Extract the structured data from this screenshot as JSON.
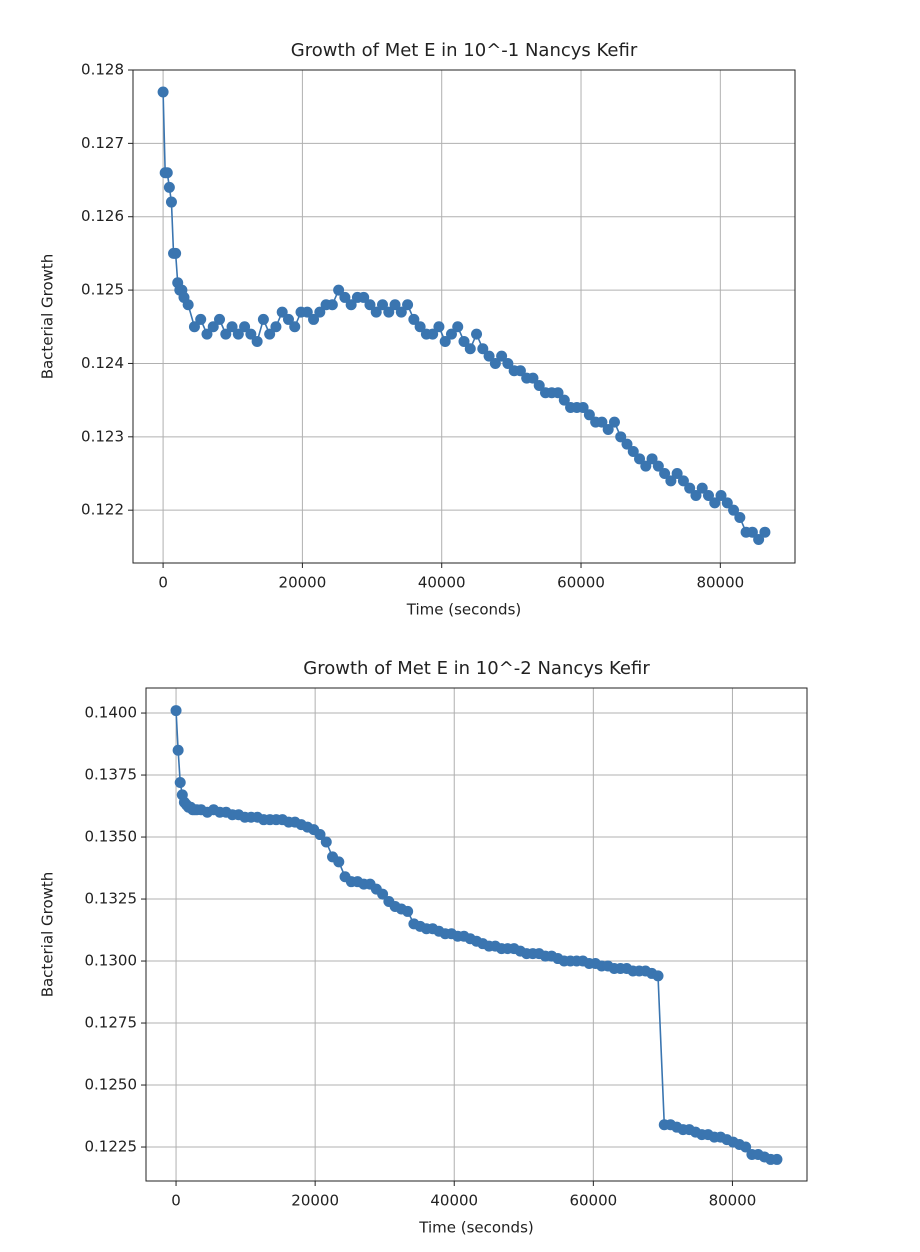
{
  "chart_data": [
    {
      "type": "line",
      "title": "Growth of Met E in 10^-1 Nancys Kefir",
      "xlabel": "Time (seconds)",
      "ylabel": "Bacterial Growth",
      "color": "#3a75b0",
      "grid": true,
      "marker": true,
      "x": [
        0,
        300,
        600,
        900,
        1200,
        1500,
        1800,
        2100,
        2400,
        2700,
        3000,
        3600,
        4500,
        5400,
        6300,
        7200,
        8100,
        9000,
        9900,
        10800,
        11700,
        12600,
        13500,
        14400,
        15300,
        16200,
        17100,
        18000,
        18900,
        19800,
        20700,
        21600,
        22500,
        23400,
        24300,
        25200,
        26100,
        27000,
        27900,
        28800,
        29700,
        30600,
        31500,
        32400,
        33300,
        34200,
        35100,
        36000,
        36900,
        37800,
        38700,
        39600,
        40500,
        41400,
        42300,
        43200,
        44100,
        45000,
        45900,
        46800,
        47700,
        48600,
        49500,
        50400,
        51300,
        52200,
        53100,
        54000,
        54900,
        55800,
        56700,
        57600,
        58500,
        59400,
        60300,
        61200,
        62100,
        63000,
        63900,
        64800,
        65700,
        66600,
        67500,
        68400,
        69300,
        70200,
        71100,
        72000,
        72900,
        73800,
        74700,
        75600,
        76500,
        77400,
        78300,
        79200,
        80100,
        81000,
        81900,
        82800,
        83700,
        84600,
        85500,
        86400
      ],
      "values": [
        0.1277,
        0.1266,
        0.1266,
        0.1264,
        0.1262,
        0.1255,
        0.1255,
        0.1251,
        0.125,
        0.125,
        0.1249,
        0.1248,
        0.1245,
        0.1246,
        0.1244,
        0.1245,
        0.1246,
        0.1244,
        0.1245,
        0.1244,
        0.1245,
        0.1244,
        0.1243,
        0.1246,
        0.1244,
        0.1245,
        0.1247,
        0.1246,
        0.1245,
        0.1247,
        0.1247,
        0.1246,
        0.1247,
        0.1248,
        0.1248,
        0.125,
        0.1249,
        0.1248,
        0.1249,
        0.1249,
        0.1248,
        0.1247,
        0.1248,
        0.1247,
        0.1248,
        0.1247,
        0.1248,
        0.1246,
        0.1245,
        0.1244,
        0.1244,
        0.1245,
        0.1243,
        0.1244,
        0.1245,
        0.1243,
        0.1242,
        0.1244,
        0.1242,
        0.1241,
        0.124,
        0.1241,
        0.124,
        0.1239,
        0.1239,
        0.1238,
        0.1238,
        0.1237,
        0.1236,
        0.1236,
        0.1236,
        0.1235,
        0.1234,
        0.1234,
        0.1234,
        0.1233,
        0.1232,
        0.1232,
        0.1231,
        0.1232,
        0.123,
        0.1229,
        0.1228,
        0.1227,
        0.1226,
        0.1227,
        0.1226,
        0.1225,
        0.1224,
        0.1225,
        0.1224,
        0.1223,
        0.1222,
        0.1223,
        0.1222,
        0.1221,
        0.1222,
        0.1221,
        0.122,
        0.1219,
        0.1217,
        0.1217,
        0.1216,
        0.1217
      ],
      "xlim": [
        -4320,
        90720
      ],
      "xticks": [
        0,
        20000,
        40000,
        60000,
        80000
      ],
      "ylim": [
        0.12128,
        0.128
      ],
      "yticks": [
        0.122,
        0.123,
        0.124,
        0.125,
        0.126,
        0.127,
        0.128
      ]
    },
    {
      "type": "line",
      "title": "Growth of Met E in 10^-2 Nancys Kefir",
      "xlabel": "Time (seconds)",
      "ylabel": "Bacterial Growth",
      "color": "#3a75b0",
      "grid": true,
      "marker": true,
      "x": [
        0,
        300,
        600,
        900,
        1200,
        1500,
        1800,
        2100,
        2400,
        2700,
        3000,
        3600,
        4500,
        5400,
        6300,
        7200,
        8100,
        9000,
        9900,
        10800,
        11700,
        12600,
        13500,
        14400,
        15300,
        16200,
        17100,
        18000,
        18900,
        19800,
        20700,
        21600,
        22500,
        23400,
        24300,
        25200,
        26100,
        27000,
        27900,
        28800,
        29700,
        30600,
        31500,
        32400,
        33300,
        34200,
        35100,
        36000,
        36900,
        37800,
        38700,
        39600,
        40500,
        41400,
        42300,
        43200,
        44100,
        45000,
        45900,
        46800,
        47700,
        48600,
        49500,
        50400,
        51300,
        52200,
        53100,
        54000,
        54900,
        55800,
        56700,
        57600,
        58500,
        59400,
        60300,
        61200,
        62100,
        63000,
        63900,
        64800,
        65700,
        66600,
        67500,
        68400,
        69300,
        70200,
        71100,
        72000,
        72900,
        73800,
        74700,
        75600,
        76500,
        77400,
        78300,
        79200,
        80100,
        81000,
        81900,
        82800,
        83700,
        84600,
        85500,
        86400
      ],
      "values": [
        0.1401,
        0.1385,
        0.1372,
        0.1367,
        0.1364,
        0.1363,
        0.1362,
        0.1362,
        0.1361,
        0.1361,
        0.1361,
        0.1361,
        0.136,
        0.1361,
        0.136,
        0.136,
        0.1359,
        0.1359,
        0.1358,
        0.1358,
        0.1358,
        0.1357,
        0.1357,
        0.1357,
        0.1357,
        0.1356,
        0.1356,
        0.1355,
        0.1354,
        0.1353,
        0.1351,
        0.1348,
        0.1342,
        0.134,
        0.1334,
        0.1332,
        0.1332,
        0.1331,
        0.1331,
        0.1329,
        0.1327,
        0.1324,
        0.1322,
        0.1321,
        0.132,
        0.1315,
        0.1314,
        0.1313,
        0.1313,
        0.1312,
        0.1311,
        0.1311,
        0.131,
        0.131,
        0.1309,
        0.1308,
        0.1307,
        0.1306,
        0.1306,
        0.1305,
        0.1305,
        0.1305,
        0.1304,
        0.1303,
        0.1303,
        0.1303,
        0.1302,
        0.1302,
        0.1301,
        0.13,
        0.13,
        0.13,
        0.13,
        0.1299,
        0.1299,
        0.1298,
        0.1298,
        0.1297,
        0.1297,
        0.1297,
        0.1296,
        0.1296,
        0.1296,
        0.1295,
        0.1294,
        0.1234,
        0.1234,
        0.1233,
        0.1232,
        0.1232,
        0.1231,
        0.123,
        0.123,
        0.1229,
        0.1229,
        0.1228,
        0.1227,
        0.1226,
        0.1225,
        0.1222,
        0.1222,
        0.1221,
        0.122,
        0.122
      ],
      "xlim": [
        -4320,
        90720
      ],
      "xticks": [
        0,
        20000,
        40000,
        60000,
        80000
      ],
      "ylim": [
        0.12113,
        0.14101
      ],
      "yticks": [
        0.1225,
        {
          "value": 0.125,
          "label": "0.1250"
        },
        0.1275,
        {
          "value": 0.13,
          "label": "0.1300"
        },
        0.1325,
        {
          "value": 0.135,
          "label": "0.1350"
        },
        0.1375,
        {
          "value": 0.14,
          "label": "0.1400"
        }
      ]
    }
  ]
}
